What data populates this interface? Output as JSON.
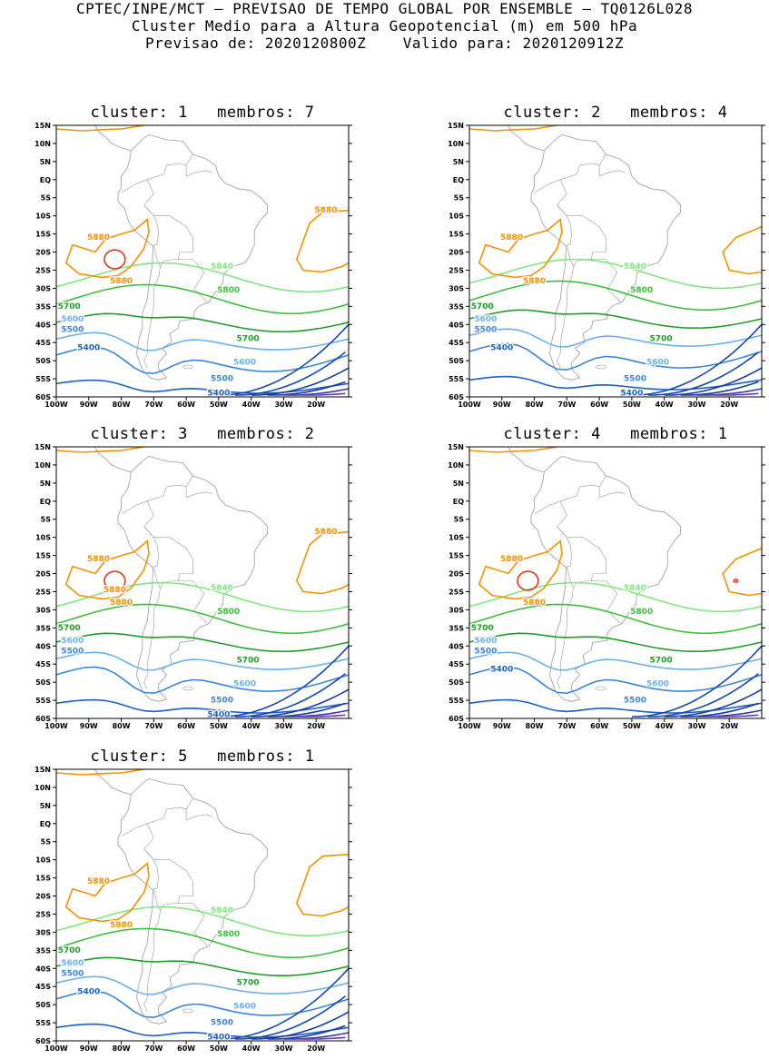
{
  "header": {
    "line1": "CPTEC/INPE/MCT – PREVISAO DE TEMPO GLOBAL POR ENSEMBLE – TQ0126L028",
    "line2": "Cluster Medio para a Altura Geopotencial (m) em 500 hPa",
    "line3": "Previsao de: 2020120800Z    Valido para: 2020120912Z"
  },
  "axes": {
    "lat_labels": [
      "15N",
      "10N",
      "5N",
      "EQ",
      "5S",
      "10S",
      "15S",
      "20S",
      "25S",
      "30S",
      "35S",
      "40S",
      "45S",
      "50S",
      "55S",
      "60S"
    ],
    "lon_labels": [
      "100W",
      "90W",
      "80W",
      "70W",
      "60W",
      "50W",
      "40W",
      "30W",
      "20W"
    ]
  },
  "colors": {
    "c5880": "#f39200",
    "c5900": "#e8341c",
    "c5840": "#7ee87c",
    "c5800": "#3cbf3c",
    "c5700": "#1e9e28",
    "c5600": "#6cb0ee",
    "c5500": "#3a86dc",
    "c5400": "#1c5fc8",
    "deep1": "#1448b0",
    "deep2": "#1a3aa0",
    "deep3": "#3a3aa8",
    "deep4": "#6a3ab8",
    "coast": "#9a9a9a"
  },
  "panels": [
    {
      "cluster_label": "cluster: 1",
      "members_label": "membros: 7",
      "labels": {
        "l5880a": "5880",
        "l5880b": "5880",
        "l5880c": "5880",
        "l5840": "5840",
        "l5800": "5800",
        "l5700a": "5700",
        "l5700b": "5700",
        "l5600a": "5600",
        "l5600b": "5600",
        "l5500a": "5500",
        "l5500b": "5500",
        "l5400a": "5400",
        "l5400b": "5400"
      }
    },
    {
      "cluster_label": "cluster: 2",
      "members_label": "membros: 4",
      "labels": {
        "l5880a": "5880",
        "l5880b": "5880",
        "l5840": "5840",
        "l5800": "5800",
        "l5700a": "5700",
        "l5700b": "5700",
        "l5600a": "5600",
        "l5600b": "5600",
        "l5500a": "5500",
        "l5500b": "5500",
        "l5400a": "5400",
        "l5400b": "5400"
      }
    },
    {
      "cluster_label": "cluster: 3",
      "members_label": "membros: 2",
      "labels": {
        "l5880a": "5880",
        "l5880b": "5880",
        "l5880c": "5880",
        "l5880d": "5880",
        "l5840": "5840",
        "l5800": "5800",
        "l5700a": "5700",
        "l5700b": "5700",
        "l5600a": "5600",
        "l5600b": "5600",
        "l5500a": "5500",
        "l5500b": "5500",
        "l5400b": "5400"
      }
    },
    {
      "cluster_label": "cluster: 4",
      "members_label": "membros: 1",
      "labels": {
        "l5880a": "5880",
        "l5880b": "5880",
        "l5840": "5840",
        "l5800": "5800",
        "l5700a": "5700",
        "l5700b": "5700",
        "l5600a": "5600",
        "l5600b": "5600",
        "l5500a": "5500",
        "l5500b": "5500",
        "l5400a": "5400"
      }
    },
    {
      "cluster_label": "cluster: 5",
      "members_label": "membros: 1",
      "labels": {
        "l5880a": "5880",
        "l5880b": "5880",
        "l5840": "5840",
        "l5800": "5800",
        "l5700a": "5700",
        "l5700b": "5700",
        "l5600a": "5600",
        "l5600b": "5600",
        "l5500a": "5500",
        "l5500b": "5500",
        "l5400a": "5400",
        "l5400b": "5400"
      }
    }
  ]
}
